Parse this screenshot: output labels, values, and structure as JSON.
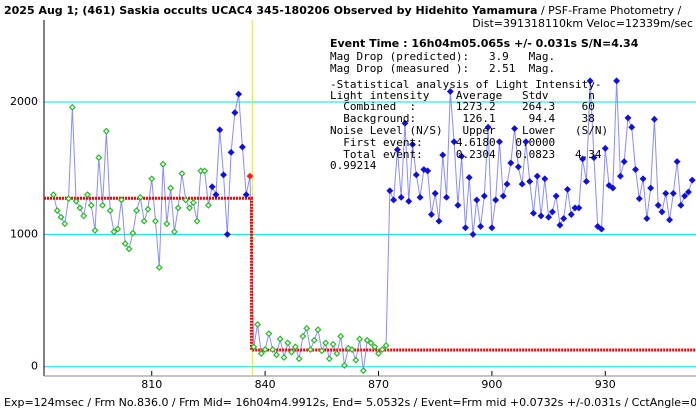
{
  "chart_data": {
    "type": "scatter",
    "title": "2025 Aug 1; (461) Saskia occults UCAC4 345-180206 Observed by Hidehito Yamamura",
    "subtitle": " / PSF-Frame Photometry /",
    "info": "Dist=391318110km Veloc=12339m/sec",
    "event_time": "Event Time : 16h04m05.065s  +/- 0.031s  S/N=4.34",
    "stats": [
      "Mag Drop (predicted):   3.9   Mag.",
      "Mag Drop (measured ):   2.51  Mag.",
      "-Statistical analysis of Light Intensity-",
      "Light intensity    Average   Stdv      n",
      "  Combined  :      1273.2    264.3    60",
      "  Background:       126.1     94.4    38",
      "Noise Level (N/S)   Upper    Lower   (S/N)",
      "  First event:     4.6180   0.0000",
      "  Total event:     0.2304   0.0823   4.34",
      "0.99214"
    ],
    "footer": "Exp=124msec / Frm No.836.0 / Frm Mid= 16h04m4.9912s,  End= 5.0532s / Event=Frm mid +0.0732s +/-0.031s / CctAngle=0.0deg",
    "xlim": [
      781.5,
      954
    ],
    "ylim": [
      -70,
      2620
    ],
    "xticks": [
      810,
      840,
      870,
      900,
      930
    ],
    "yticks": [
      0,
      1000,
      2000
    ],
    "grid": true,
    "grid_color": "#00e0e0",
    "line_color": "#8c8cff",
    "series": [
      {
        "color": "#22bb22",
        "x": [
          784,
          785,
          786,
          787,
          788,
          789,
          790,
          791,
          792,
          793,
          794,
          795,
          796,
          797,
          798,
          799,
          800,
          801,
          802,
          803,
          804,
          805,
          806,
          807,
          808,
          809,
          810,
          811,
          812,
          813,
          814,
          815,
          816,
          817,
          818,
          819,
          820,
          821,
          822,
          823,
          824,
          825
        ],
        "values": [
          1300,
          1180,
          1130,
          1080,
          1270,
          1960,
          1250,
          1200,
          1140,
          1300,
          1220,
          1030,
          1580,
          1220,
          1780,
          1180,
          1020,
          1040,
          1260,
          930,
          890,
          1010,
          1180,
          1280,
          1100,
          1190,
          1420,
          1100,
          750,
          1530,
          1080,
          1350,
          1020,
          1200,
          1460,
          1260,
          1200,
          1240,
          1100,
          1480,
          1480,
          1220
        ]
      },
      {
        "color": "#1010dd",
        "x": [
          826,
          827,
          828,
          829,
          830,
          831,
          832,
          833,
          834,
          835
        ],
        "values": [
          1360,
          1300,
          1790,
          1450,
          1000,
          1620,
          1920,
          2060,
          1660,
          1300
        ]
      },
      {
        "color": "#ff2020",
        "x": [
          836
        ],
        "values": [
          1440
        ]
      },
      {
        "color": "#22bb22",
        "x": [
          837,
          838,
          839,
          840,
          841,
          842,
          843,
          844,
          845,
          846,
          847,
          848,
          849,
          850,
          851,
          852,
          853,
          854,
          855,
          856,
          857,
          858,
          859,
          860,
          861,
          862,
          863,
          864,
          865,
          866,
          867,
          868,
          869,
          870,
          871,
          872
        ],
        "values": [
          150,
          320,
          100,
          130,
          250,
          130,
          90,
          210,
          70,
          180,
          110,
          150,
          60,
          230,
          290,
          130,
          200,
          280,
          120,
          180,
          60,
          170,
          100,
          230,
          10,
          140,
          130,
          50,
          210,
          -30,
          200,
          180,
          150,
          100,
          130,
          160
        ]
      },
      {
        "color": "#1010dd",
        "x": [
          873,
          874,
          875,
          876,
          877,
          878,
          879,
          880,
          881,
          882,
          883,
          884,
          885,
          886,
          887,
          888,
          889,
          890,
          891,
          892,
          893,
          894,
          895,
          896,
          897,
          898,
          899,
          900,
          901,
          902,
          903,
          904,
          905,
          906,
          907,
          908,
          909,
          910,
          911,
          912,
          913,
          914,
          915,
          916,
          917,
          918,
          919,
          920,
          921,
          922,
          923,
          924,
          925,
          926,
          927,
          928,
          929,
          930,
          931,
          932,
          933,
          934,
          935,
          936,
          937,
          938,
          939,
          940,
          941,
          942,
          943,
          944,
          945,
          946,
          947,
          948,
          949,
          950,
          951,
          952,
          953
        ],
        "values": [
          1330,
          1260,
          1640,
          1280,
          1840,
          1250,
          1680,
          1450,
          1280,
          1490,
          1480,
          1150,
          1310,
          1100,
          1600,
          1280,
          2080,
          1700,
          1220,
          1590,
          1050,
          1430,
          1000,
          1260,
          1060,
          1290,
          1810,
          1050,
          1260,
          1700,
          1290,
          1380,
          1540,
          1800,
          1510,
          1380,
          1700,
          1400,
          1160,
          1440,
          1140,
          1420,
          1130,
          1170,
          1290,
          1070,
          1120,
          1340,
          1150,
          1200,
          1200,
          1570,
          1400,
          2160,
          1580,
          1060,
          1040,
          1650,
          1370,
          1350,
          2160,
          1440,
          1550,
          1880,
          1810,
          1490,
          1270,
          1420,
          1120,
          1350,
          1870,
          1220,
          1170,
          1310,
          1110,
          1310,
          1550,
          1220,
          1290,
          1320,
          1410
        ]
      }
    ],
    "model": {
      "color": "#ff0000",
      "x": [
        781.5,
        836.4,
        836.4,
        954
      ],
      "values": [
        1273.2,
        1273.2,
        126.1,
        126.1
      ]
    },
    "event_line": {
      "color": "#e8e800",
      "x": 836.6
    }
  }
}
